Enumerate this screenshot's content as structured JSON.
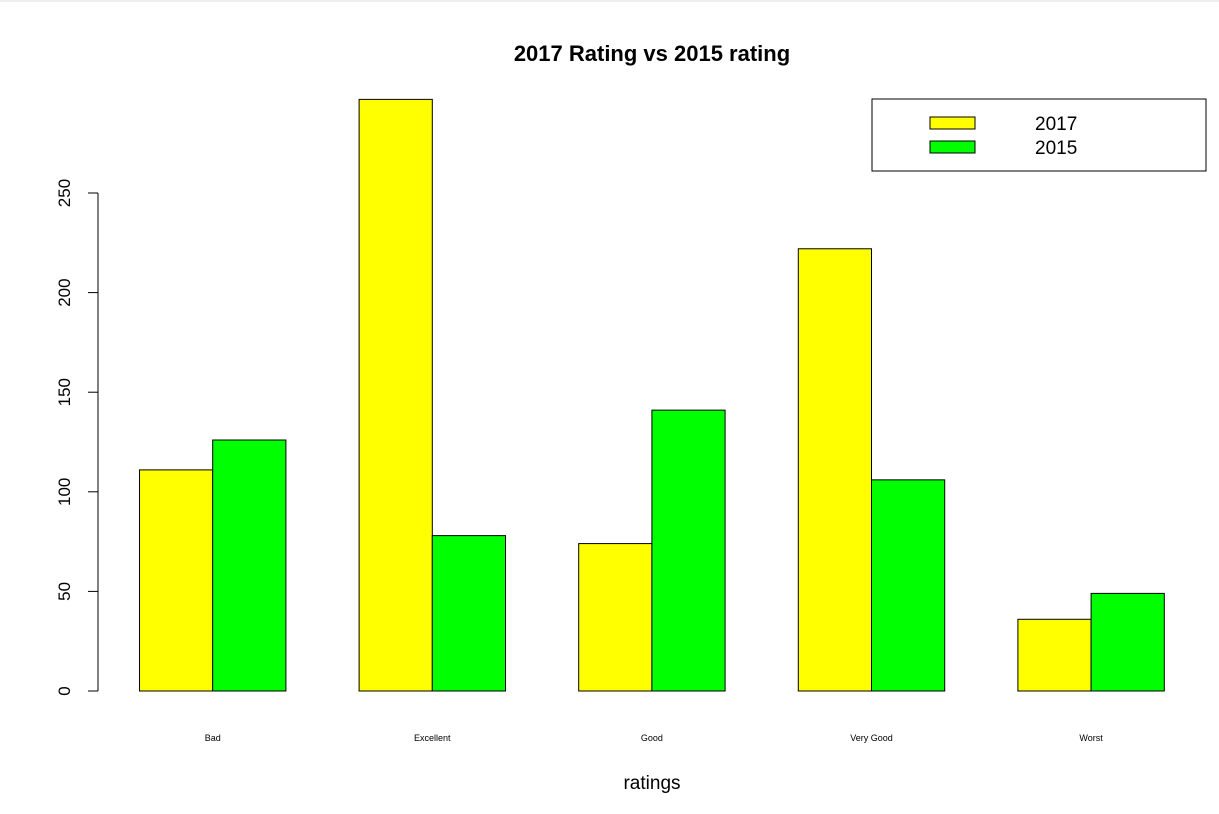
{
  "chart_data": {
    "type": "bar",
    "title": "2017 Rating vs 2015 rating",
    "xlabel": "ratings",
    "ylabel": "",
    "categories": [
      "Bad",
      "Excellent",
      "Good",
      "Very Good",
      "Worst"
    ],
    "series": [
      {
        "name": "2017",
        "color": "#ffff00",
        "values": [
          111,
          297,
          74,
          222,
          36
        ]
      },
      {
        "name": "2015",
        "color": "#00ff00",
        "values": [
          126,
          78,
          141,
          106,
          49
        ]
      }
    ],
    "ylim": [
      0,
      300
    ],
    "yticks": [
      0,
      50,
      100,
      150,
      200,
      250
    ],
    "legend_position": "top-right",
    "grid": false
  }
}
